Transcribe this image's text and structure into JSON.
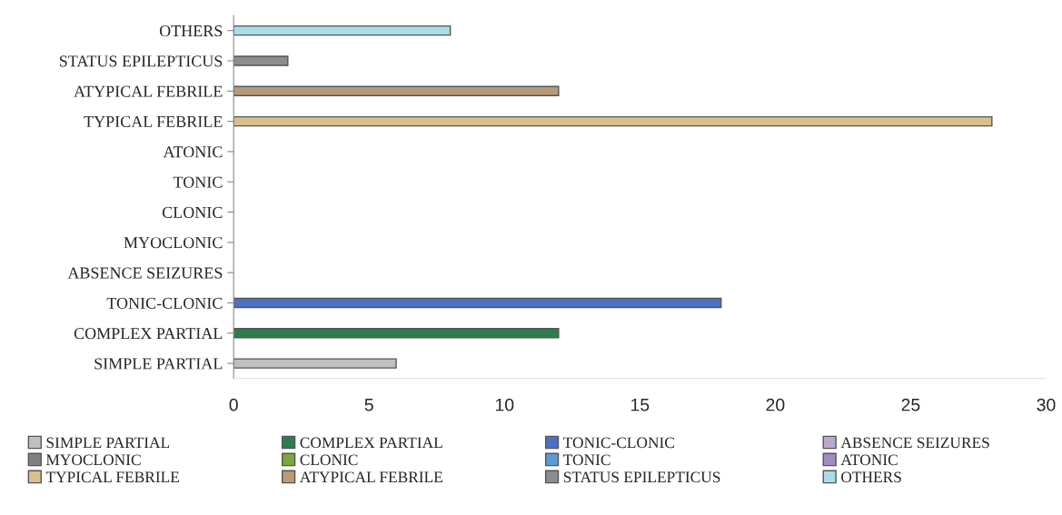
{
  "chart_data": {
    "type": "bar",
    "orientation": "horizontal",
    "categories": [
      "OTHERS",
      "STATUS EPILEPTICUS",
      "ATYPICAL FEBRILE",
      "TYPICAL FEBRILE",
      "ATONIC",
      "TONIC",
      "CLONIC",
      "MYOCLONIC",
      "ABSENCE SEIZURES",
      "TONIC-CLONIC",
      "COMPLEX PARTIAL",
      "SIMPLE PARTIAL"
    ],
    "series": [
      {
        "name": "SIMPLE PARTIAL",
        "color": "#c0c0c0",
        "values": [
          null,
          null,
          null,
          null,
          null,
          null,
          null,
          null,
          null,
          null,
          null,
          6
        ]
      },
      {
        "name": "COMPLEX PARTIAL",
        "color": "#2e7d4f",
        "values": [
          null,
          null,
          null,
          null,
          null,
          null,
          null,
          null,
          null,
          null,
          12,
          null
        ]
      },
      {
        "name": "TONIC-CLONIC",
        "color": "#4a72c4",
        "values": [
          null,
          null,
          null,
          null,
          null,
          null,
          null,
          null,
          null,
          18,
          null,
          null
        ]
      },
      {
        "name": "ABSENCE SEIZURES",
        "color": "#b9a9d0",
        "values": [
          null,
          null,
          null,
          null,
          null,
          null,
          null,
          null,
          0,
          null,
          null,
          null
        ]
      },
      {
        "name": "MYOCLONIC",
        "color": "#808080",
        "values": [
          null,
          null,
          null,
          null,
          null,
          null,
          null,
          0,
          null,
          null,
          null,
          null
        ]
      },
      {
        "name": "CLONIC",
        "color": "#7aa640",
        "values": [
          null,
          null,
          null,
          null,
          null,
          null,
          0,
          null,
          null,
          null,
          null,
          null
        ]
      },
      {
        "name": "TONIC",
        "color": "#5b9bd5",
        "values": [
          null,
          null,
          null,
          null,
          null,
          0,
          null,
          null,
          null,
          null,
          null,
          null
        ]
      },
      {
        "name": "ATONIC",
        "color": "#a08cc0",
        "values": [
          null,
          null,
          null,
          null,
          0,
          null,
          null,
          null,
          null,
          null,
          null,
          null
        ]
      },
      {
        "name": "TYPICAL FEBRILE",
        "color": "#d9c08a",
        "values": [
          null,
          null,
          null,
          28,
          null,
          null,
          null,
          null,
          null,
          null,
          null,
          null
        ]
      },
      {
        "name": "ATYPICAL FEBRILE",
        "color": "#b89a78",
        "values": [
          null,
          null,
          12,
          null,
          null,
          null,
          null,
          null,
          null,
          null,
          null,
          null
        ]
      },
      {
        "name": "STATUS EPILEPTICUS",
        "color": "#8c8c8c",
        "values": [
          null,
          2,
          null,
          null,
          null,
          null,
          null,
          null,
          null,
          null,
          null,
          null
        ]
      },
      {
        "name": "OTHERS",
        "color": "#a9dde8",
        "values": [
          8,
          null,
          null,
          null,
          null,
          null,
          null,
          null,
          null,
          null,
          null,
          null
        ]
      }
    ],
    "xlim": [
      0,
      30
    ],
    "xticks": [
      0,
      5,
      10,
      15,
      20,
      25,
      30
    ],
    "grid": false,
    "legend": "bottom"
  }
}
